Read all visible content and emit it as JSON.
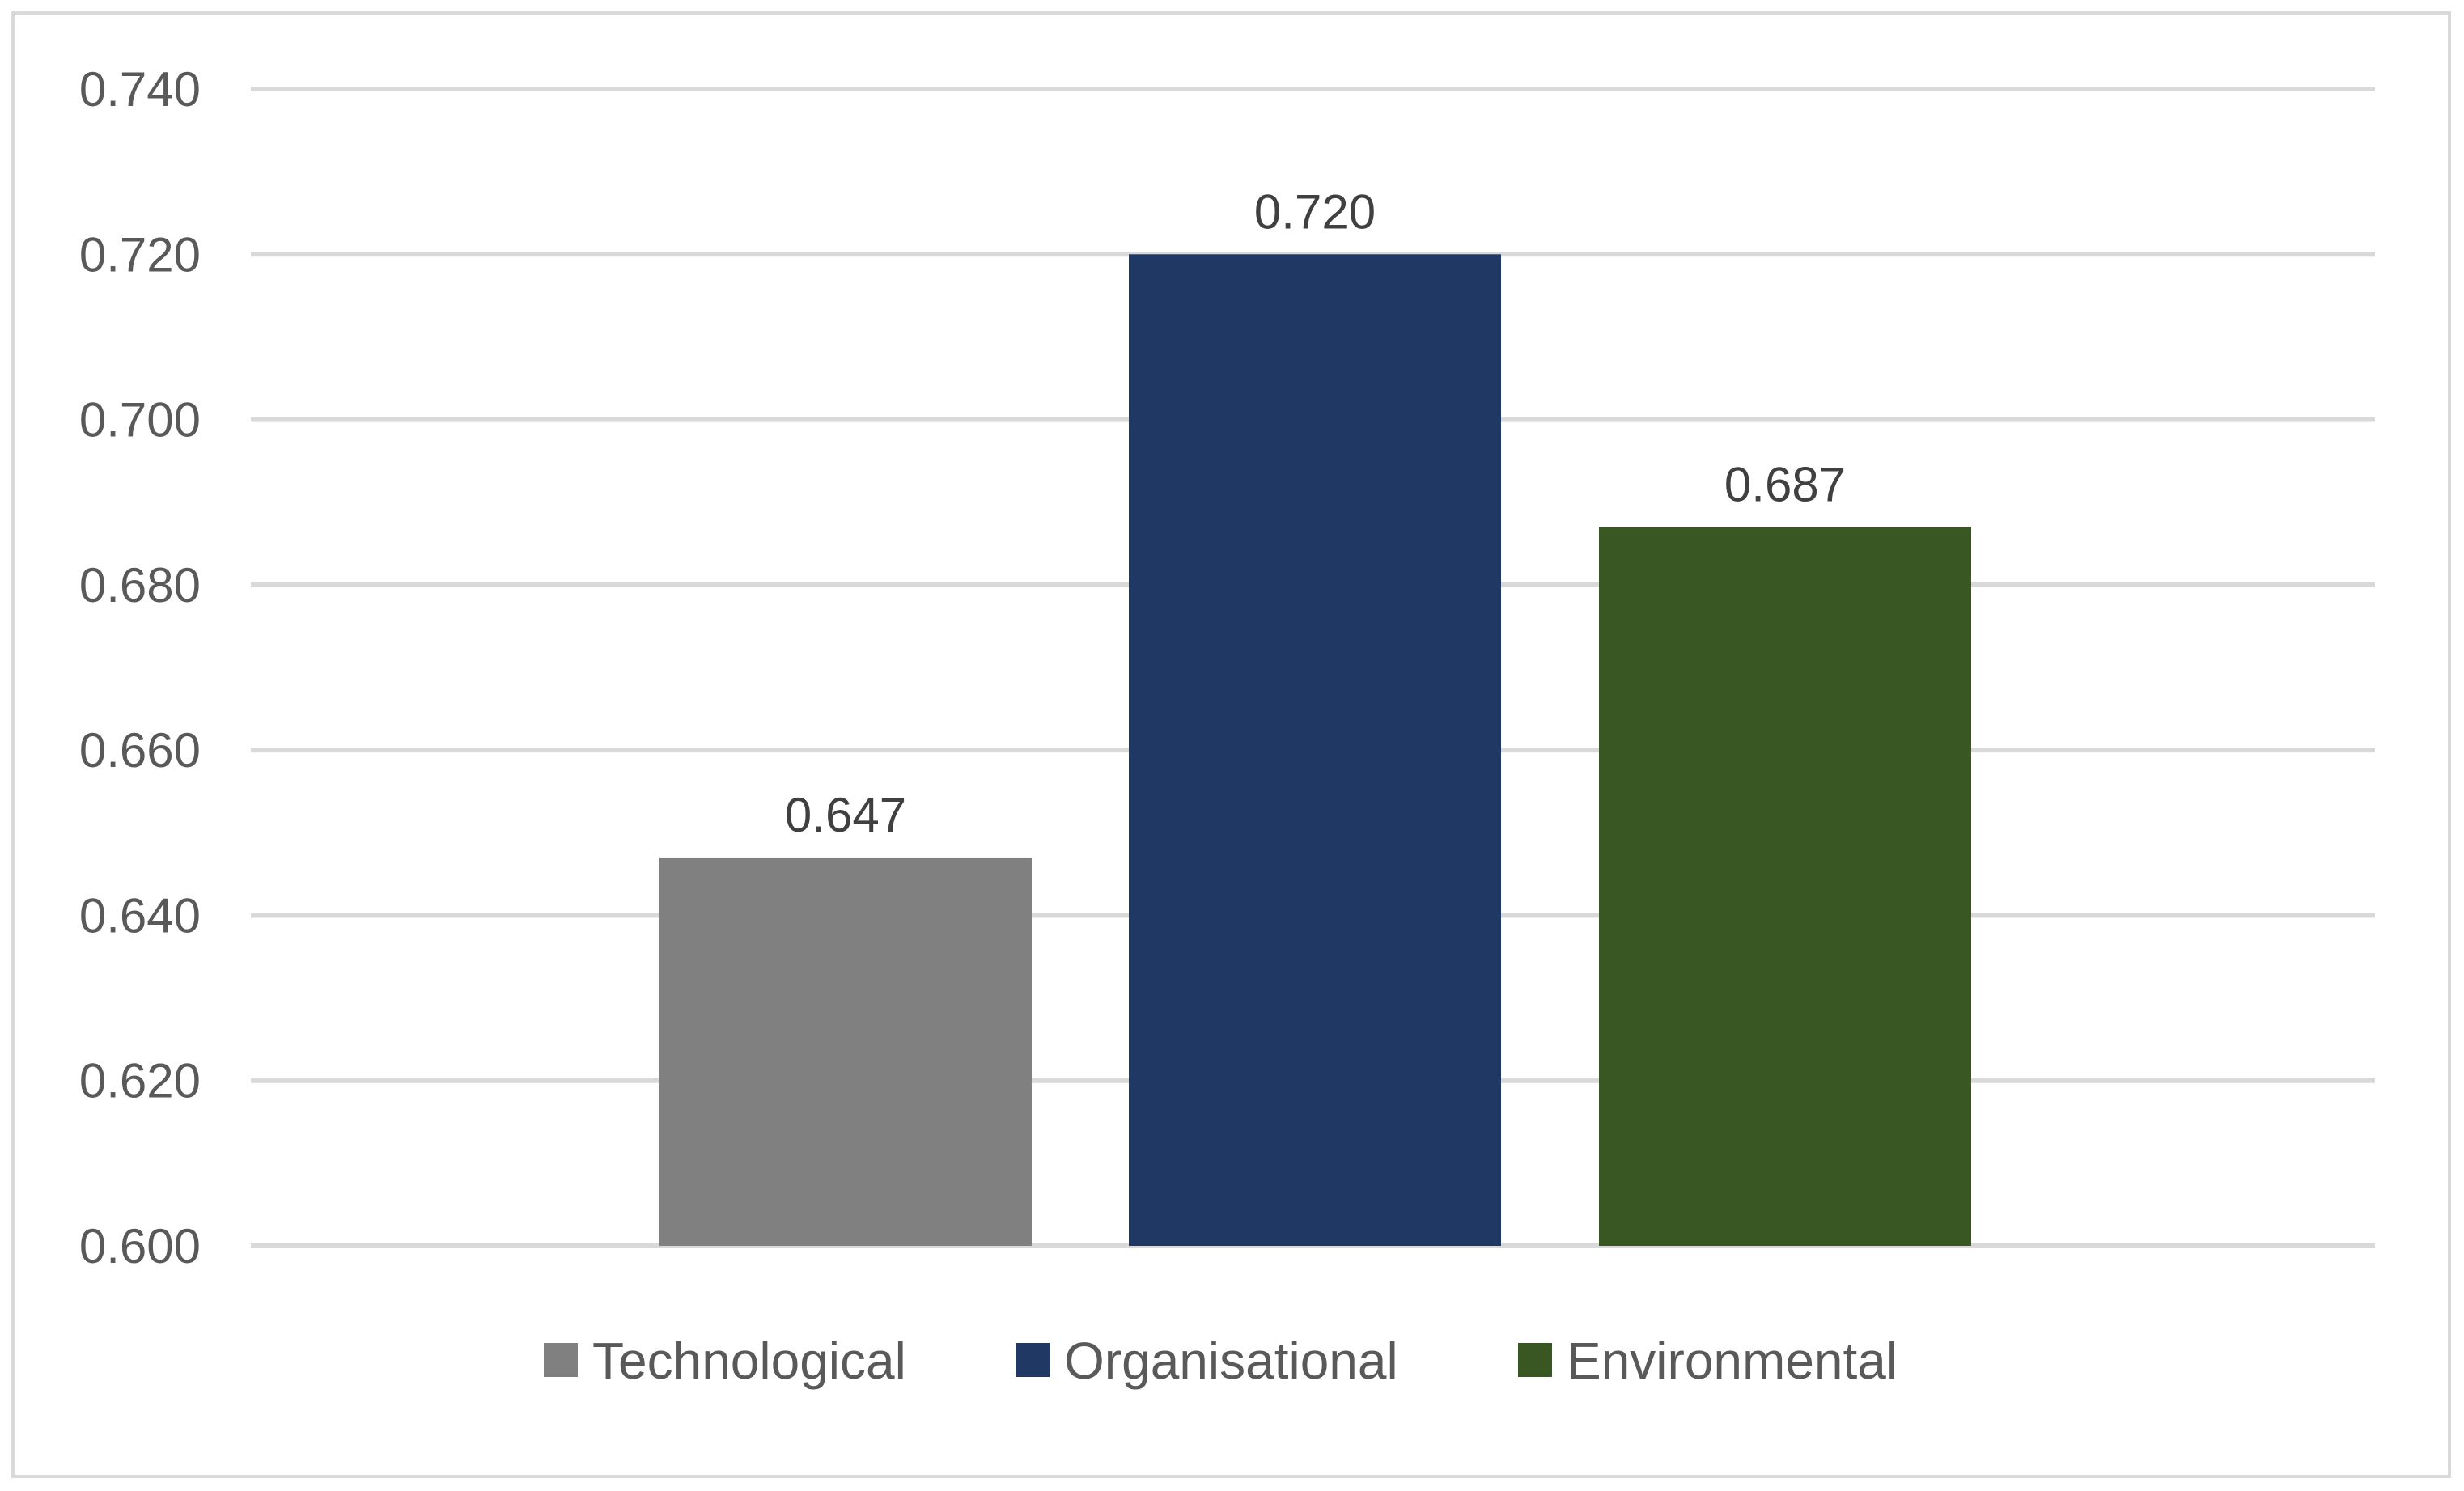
{
  "chart_data": {
    "type": "bar",
    "categories": [
      "Technological",
      "Organisational",
      "Environmental"
    ],
    "values": [
      0.647,
      0.72,
      0.687
    ],
    "data_labels": [
      "0.647",
      "0.720",
      "0.687"
    ],
    "colors": [
      "#808080",
      "#203864",
      "#385723"
    ],
    "ylim": [
      0.6,
      0.74
    ],
    "yticks": [
      "0.600",
      "0.620",
      "0.640",
      "0.660",
      "0.680",
      "0.700",
      "0.720",
      "0.740"
    ],
    "title": "",
    "xlabel": "",
    "ylabel": "",
    "grid": true,
    "legend_position": "bottom",
    "legend": [
      "Technological",
      "Organisational",
      "Environmental"
    ]
  }
}
